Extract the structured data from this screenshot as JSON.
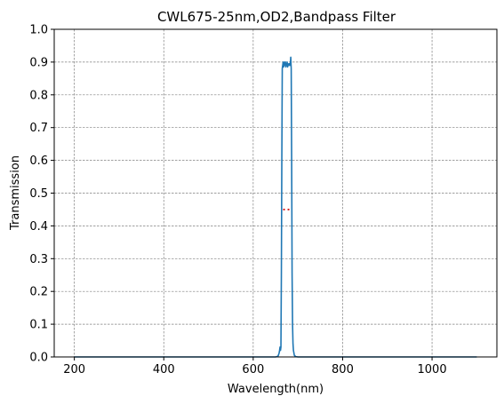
{
  "chart_data": {
    "type": "line",
    "title": "CWL675-25nm,OD2,Bandpass Filter",
    "xlabel": "Wavelength(nm)",
    "ylabel": "Transmission",
    "xlim": [
      155,
      1145
    ],
    "ylim": [
      0,
      1.0
    ],
    "x_ticks": [
      200,
      400,
      600,
      800,
      1000
    ],
    "y_ticks": [
      0.0,
      0.1,
      0.2,
      0.3,
      0.4,
      0.5,
      0.6,
      0.7,
      0.8,
      0.9,
      1.0
    ],
    "grid": true,
    "series": [
      {
        "color": "#1f77b4",
        "x": [
          200,
          400,
          600,
          650,
          655,
          656,
          657,
          658,
          659,
          660,
          661,
          662,
          663,
          664,
          665,
          667,
          668,
          669,
          670,
          671,
          672,
          673,
          674,
          675,
          676,
          677,
          678,
          679,
          680,
          681,
          682,
          683,
          684,
          685,
          686,
          687,
          688,
          689,
          690,
          692,
          695,
          700,
          710,
          800,
          1000,
          1100
        ],
        "y": [
          0.0,
          0.0,
          0.0,
          0.0,
          0.002,
          0.004,
          0.008,
          0.012,
          0.02,
          0.03,
          0.02,
          0.03,
          0.25,
          0.6,
          0.88,
          0.9,
          0.885,
          0.895,
          0.9,
          0.89,
          0.9,
          0.885,
          0.895,
          0.89,
          0.9,
          0.885,
          0.895,
          0.89,
          0.89,
          0.895,
          0.89,
          0.89,
          0.915,
          0.88,
          0.6,
          0.25,
          0.1,
          0.04,
          0.02,
          0.005,
          0.001,
          0.0,
          0.0,
          0.0,
          0.0,
          0.0
        ]
      },
      {
        "color": "#d62728",
        "style": "dotted",
        "x": [
          667,
          685
        ],
        "y": [
          0.45,
          0.45
        ]
      }
    ]
  }
}
